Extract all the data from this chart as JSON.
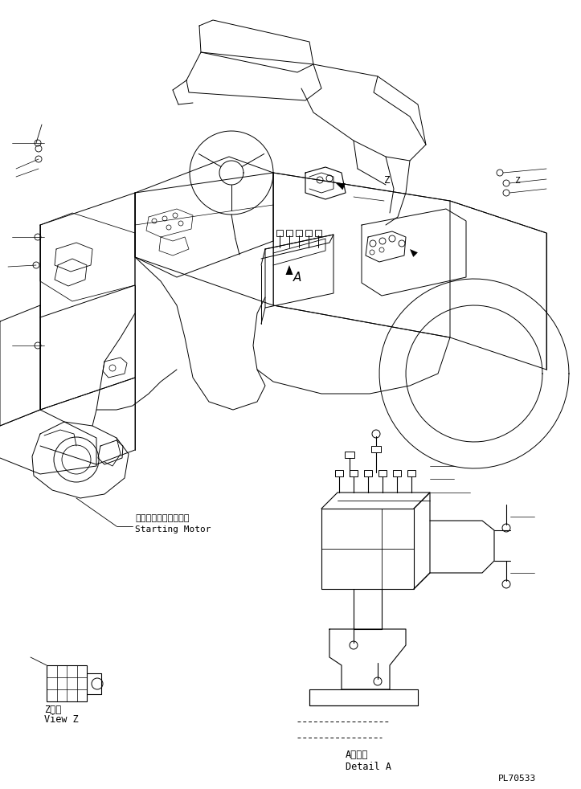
{
  "bg_color": "#ffffff",
  "line_color": "#000000",
  "part_number": "PL70533",
  "labels": {
    "starting_motor_jp": "スターティングモータ",
    "starting_motor_en": "Starting Motor",
    "view_z_jp": "Z　視",
    "view_z_en": "View Z",
    "detail_a_jp": "A　詳細",
    "detail_a_en": "Detail A"
  },
  "figsize": [
    7.23,
    9.82
  ],
  "dpi": 100
}
